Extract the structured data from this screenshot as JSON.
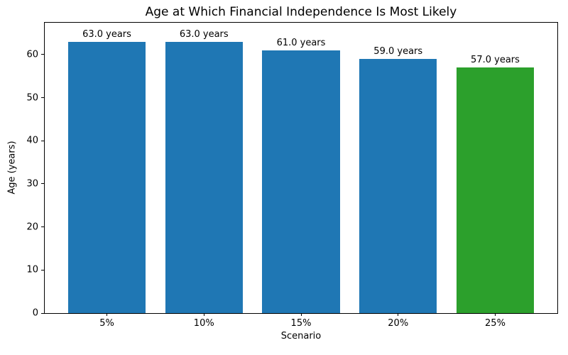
{
  "figure": {
    "background": "#ffffff",
    "axes_edge_color": "#000000",
    "text_color": "#000000"
  },
  "chart_data": {
    "type": "bar",
    "title": "Age at Which Financial Independence Is Most Likely",
    "xlabel": "Scenario",
    "ylabel": "Age (years)",
    "categories": [
      "5%",
      "10%",
      "15%",
      "20%",
      "25%"
    ],
    "values": [
      63.0,
      63.0,
      61.0,
      59.0,
      57.0
    ],
    "bar_labels": [
      "63.0 years",
      "63.0 years",
      "61.0 years",
      "59.0 years",
      "57.0 years"
    ],
    "bar_colors": [
      "#1f77b4",
      "#1f77b4",
      "#1f77b4",
      "#1f77b4",
      "#2ca02c"
    ],
    "default_bar_color": "#1f77b4",
    "highlight_bar_color": "#2ca02c",
    "yticks": [
      0,
      10,
      20,
      30,
      40,
      50,
      60
    ],
    "ylim": [
      0,
      67.4
    ],
    "xlim": [
      -0.64,
      4.64
    ],
    "bar_width_units": 0.8,
    "grid": false,
    "legend_position": "none"
  }
}
